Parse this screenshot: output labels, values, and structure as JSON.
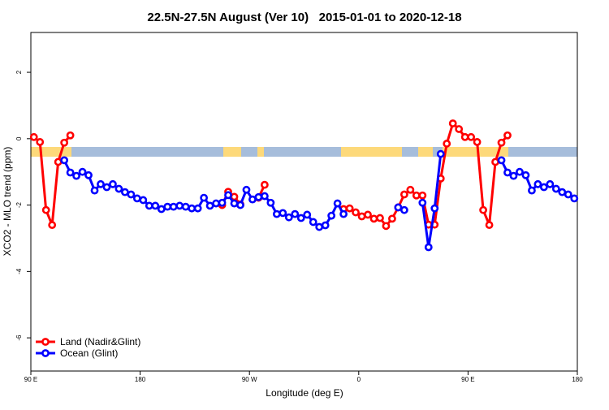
{
  "chart_data": {
    "type": "line",
    "title": "22.5N-27.5N August (Ver 10)   2015-01-01 to 2020-12-18",
    "xlabel": "Longitude (deg E)",
    "ylabel": "XCO2 - MLO trend (ppm)",
    "xlim": [
      90,
      540
    ],
    "ylim": [
      -7,
      3.2
    ],
    "xticks": [
      {
        "value": 90,
        "label": "90 E"
      },
      {
        "value": 180,
        "label": "180"
      },
      {
        "value": 270,
        "label": "90 W"
      },
      {
        "value": 360,
        "label": "0"
      },
      {
        "value": 450,
        "label": "90 E"
      },
      {
        "value": 540,
        "label": "180"
      }
    ],
    "yticks": [
      -6,
      -4,
      -2,
      0,
      2
    ],
    "grid": false,
    "legend": "bottom-left",
    "x": [
      92.5,
      97.5,
      102.5,
      107.5,
      112.5,
      117.5,
      122.5,
      127.5,
      132.5,
      137.5,
      142.5,
      147.5,
      152.5,
      157.5,
      162.5,
      167.5,
      172.5,
      177.5,
      182.5,
      187.5,
      192.5,
      197.5,
      202.5,
      207.5,
      212.5,
      217.5,
      222.5,
      227.5,
      232.5,
      237.5,
      242.5,
      247.5,
      252.5,
      257.5,
      262.5,
      267.5,
      272.5,
      277.5,
      282.5,
      287.5,
      292.5,
      297.5,
      302.5,
      307.5,
      312.5,
      317.5,
      322.5,
      327.5,
      332.5,
      337.5,
      342.5,
      347.5,
      352.5,
      357.5,
      362.5,
      367.5,
      372.5,
      377.5,
      382.5,
      387.5,
      392.5,
      397.5,
      402.5,
      407.5,
      412.5,
      417.5,
      422.5,
      427.5,
      432.5,
      437.5,
      442.5,
      447.5,
      452.5,
      457.5,
      462.5,
      467.5,
      472.5,
      477.5,
      482.5,
      487.5,
      492.5,
      497.5,
      502.5,
      507.5,
      512.5,
      517.5,
      522.5,
      527.5,
      532.5,
      537.5
    ],
    "series": [
      {
        "name": "Land (Nadir&Glint)",
        "color": "#ff0000",
        "values": [
          0.05,
          -0.1,
          -2.15,
          -2.6,
          -0.7,
          -0.12,
          0.1,
          null,
          null,
          null,
          null,
          null,
          null,
          null,
          null,
          null,
          null,
          null,
          null,
          null,
          null,
          null,
          null,
          null,
          null,
          null,
          null,
          null,
          null,
          null,
          null,
          -2.0,
          -1.6,
          -1.75,
          -1.98,
          null,
          null,
          -1.78,
          -1.39,
          null,
          null,
          null,
          null,
          null,
          null,
          null,
          null,
          null,
          null,
          null,
          null,
          -2.12,
          -2.1,
          -2.22,
          -2.34,
          -2.29,
          -2.41,
          -2.39,
          -2.63,
          -2.41,
          -2.07,
          -1.68,
          -1.54,
          -1.71,
          -1.71,
          -2.59,
          -2.59,
          -1.2,
          -0.15,
          0.46,
          0.29,
          0.05,
          0.05,
          -0.1,
          -2.15,
          -2.6,
          -0.7,
          -0.12,
          0.1,
          null,
          null,
          null,
          null,
          null,
          null,
          null,
          null,
          null,
          null,
          null
        ]
      },
      {
        "name": "Ocean (Glint)",
        "color": "#0000ff",
        "values": [
          null,
          null,
          null,
          null,
          null,
          -0.65,
          -1.02,
          -1.12,
          -1.0,
          -1.1,
          -1.56,
          -1.37,
          -1.46,
          -1.37,
          -1.51,
          -1.61,
          -1.68,
          -1.8,
          -1.85,
          -2.02,
          -2.02,
          -2.12,
          -2.05,
          -2.05,
          -2.02,
          -2.05,
          -2.1,
          -2.1,
          -1.78,
          -2.02,
          -1.95,
          -1.93,
          -1.7,
          -1.95,
          -2.0,
          -1.54,
          -1.83,
          -1.76,
          -1.73,
          -1.93,
          -2.27,
          -2.24,
          -2.37,
          -2.27,
          -2.39,
          -2.29,
          -2.51,
          -2.66,
          -2.61,
          -2.32,
          -1.95,
          -2.27,
          null,
          null,
          null,
          null,
          null,
          null,
          null,
          null,
          -2.07,
          -2.15,
          null,
          null,
          -1.93,
          -3.27,
          -2.1,
          -0.46,
          null,
          null,
          null,
          null,
          null,
          null,
          null,
          null,
          null,
          -0.65,
          -1.02,
          -1.12,
          -1.0,
          -1.1,
          -1.56,
          -1.37,
          -1.46,
          -1.37,
          -1.51,
          -1.61,
          -1.68,
          -1.8
        ]
      }
    ]
  }
}
